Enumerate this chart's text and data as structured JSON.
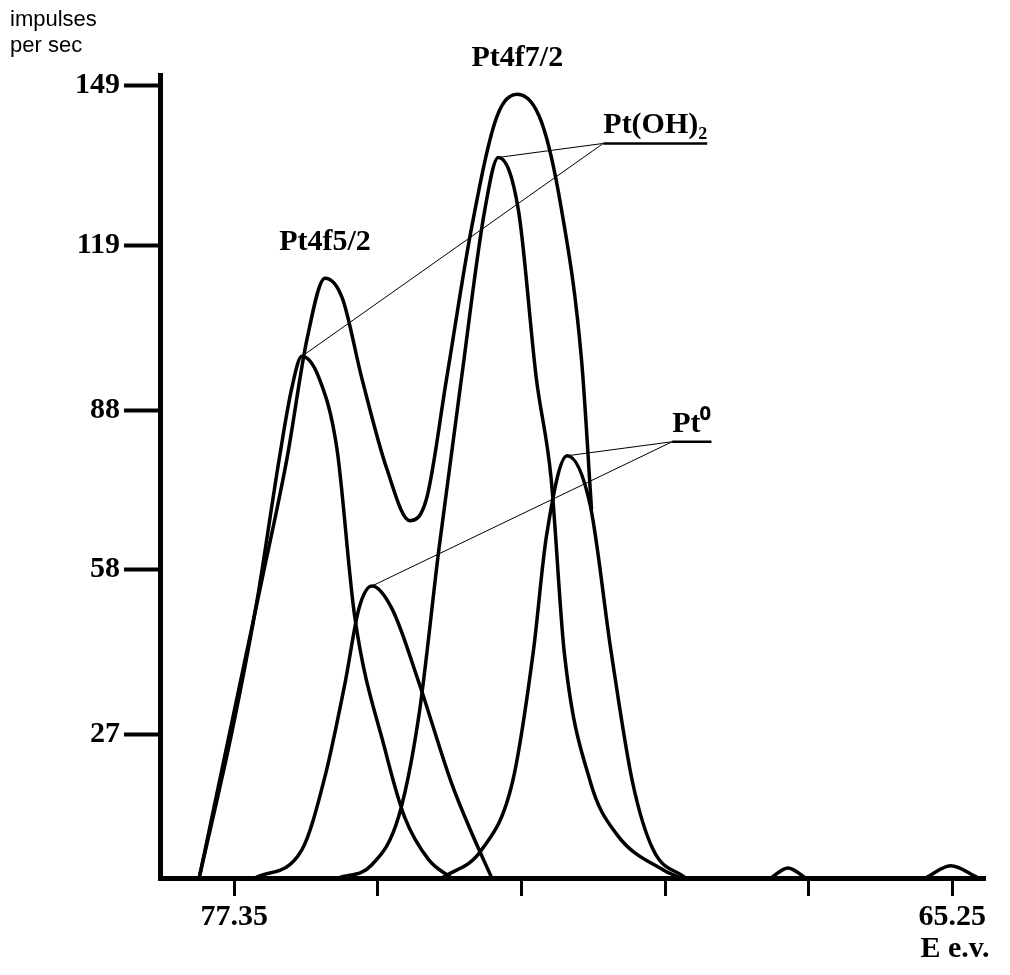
{
  "chart_data": {
    "type": "line",
    "ylabel": "impulses per sec",
    "xlabel": "E e.v.",
    "xlim": [
      78.6,
      64.7
    ],
    "ylim": [
      0,
      151
    ],
    "xticks": [
      77.35,
      {
        "value": 74.93,
        "label": null
      },
      {
        "value": 72.51,
        "label": null
      },
      {
        "value": 70.09,
        "label": null
      },
      {
        "value": 67.67,
        "label": null
      },
      65.25
    ],
    "yticks": [
      27,
      58,
      88,
      119,
      149
    ],
    "grid": false,
    "legend": false,
    "marker": "none",
    "line_style": "solid",
    "annotations": [
      {
        "text": "Pt4f5/2",
        "x": 75.82,
        "y": 112.8
      },
      {
        "text": "Pt4f7/2",
        "x": 72.58,
        "y": 147.4
      }
    ],
    "series": [
      {
        "color": "#000000",
        "x": [
          77.94,
          77.38,
          76.88,
          76.46,
          76.12,
          75.82,
          75.53,
          75.2,
          74.78,
          74.39,
          74.11,
          73.77,
          73.35,
          72.93,
          72.58,
          72.17,
          71.84,
          71.5,
          71.33,
          70.0,
          68.31,
          68.02,
          67.72,
          67.0,
          65.7,
          65.28,
          64.81
        ],
        "values": [
          0,
          29.8,
          56.2,
          78.9,
          101.5,
          112.8,
          109.1,
          94.0,
          77.0,
          67.2,
          71.3,
          94.0,
          122.3,
          143.0,
          147.4,
          142.1,
          126.0,
          97.7,
          69.4,
          null,
          0,
          1.9,
          0,
          null,
          0,
          2.3,
          0
        ]
      },
      {
        "name": "Pt(OH)₂",
        "color": "#000000",
        "x": [
          77.94,
          77.38,
          76.96,
          76.59,
          76.38,
          76.21,
          75.92,
          75.62,
          75.32,
          74.81,
          74.48,
          74.07,
          73.69,
          74.5,
          75.59,
          75.03,
          74.58,
          74.24,
          73.9,
          73.52,
          73.13,
          72.9,
          72.56,
          72.26,
          72.01,
          71.79,
          71.35,
          70.91,
          70.12,
          69.82
        ],
        "values": [
          0,
          27.9,
          52.5,
          78.9,
          92.1,
          98.1,
          94.0,
          80.8,
          49.2,
          24.2,
          11.5,
          3.4,
          0,
          null,
          0,
          2.5,
          11.5,
          30.4,
          61.9,
          94.0,
          125.5,
          135.5,
          125.5,
          94.0,
          75.1,
          42.6,
          18.1,
          8.3,
          1.5,
          0
        ]
      },
      {
        "name": "Pt⁰",
        "color": "#000000",
        "x": [
          77.0,
          76.21,
          75.82,
          75.48,
          75.25,
          75.03,
          74.69,
          74.24,
          73.69,
          73.35,
          73.01,
          73.5,
          73.85,
          73.18,
          72.66,
          72.31,
          72.09,
          71.74,
          71.35,
          71.0,
          70.64,
          70.29,
          69.74
        ],
        "values": [
          0,
          5.3,
          19.1,
          36.8,
          50.6,
          54.9,
          50.6,
          36.8,
          17.9,
          8.5,
          0,
          null,
          0,
          5.3,
          18.1,
          42.6,
          64.2,
          79.4,
          70.0,
          42.6,
          18.1,
          5.3,
          0
        ]
      }
    ]
  }
}
